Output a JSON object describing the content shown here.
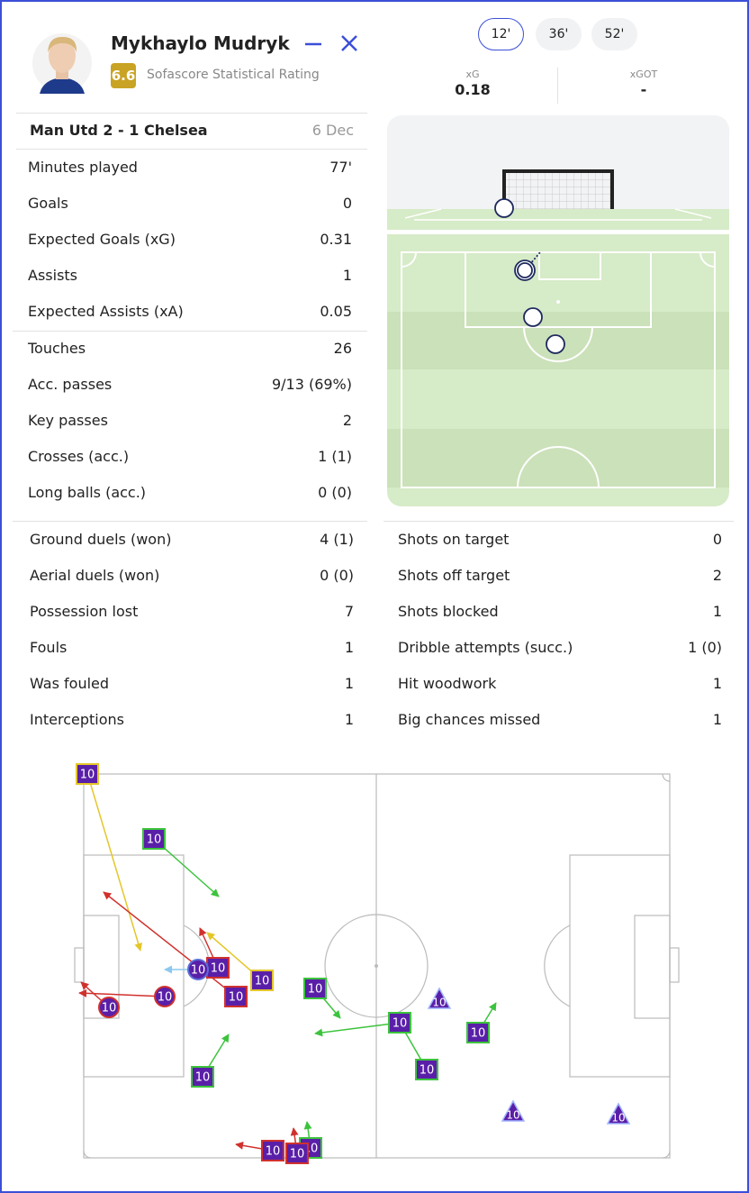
{
  "player": {
    "name": "Mykhaylo Mudryk",
    "rating": "6.6",
    "rating_label": "Sofascore Statistical Rating"
  },
  "match": {
    "title": "Man Utd 2 - 1 Chelsea",
    "date": "6 Dec"
  },
  "shot_tabs": [
    "12'",
    "36'",
    "52'"
  ],
  "shot_stats": [
    {
      "label": "xG",
      "value": "0.18"
    },
    {
      "label": "xGOT",
      "value": "-"
    }
  ],
  "stats_main": [
    {
      "label": "Minutes played",
      "value": "77'"
    },
    {
      "label": "Goals",
      "value": "0"
    },
    {
      "label": "Expected Goals (xG)",
      "value": "0.31"
    },
    {
      "label": "Assists",
      "value": "1"
    },
    {
      "label": "Expected Assists (xA)",
      "value": "0.05"
    }
  ],
  "stats_passing": [
    {
      "label": "Touches",
      "value": "26"
    },
    {
      "label": "Acc. passes",
      "value": "9/13 (69%)"
    },
    {
      "label": "Key passes",
      "value": "2"
    },
    {
      "label": "Crosses (acc.)",
      "value": "1 (1)"
    },
    {
      "label": "Long balls (acc.)",
      "value": "0 (0)"
    }
  ],
  "stats_defence": [
    {
      "label": "Ground duels (won)",
      "value": "4 (1)"
    },
    {
      "label": "Aerial duels (won)",
      "value": "0 (0)"
    },
    {
      "label": "Possession lost",
      "value": "7"
    },
    {
      "label": "Fouls",
      "value": "1"
    },
    {
      "label": "Was fouled",
      "value": "1"
    },
    {
      "label": "Interceptions",
      "value": "1"
    }
  ],
  "stats_attack": [
    {
      "label": "Shots on target",
      "value": "0"
    },
    {
      "label": "Shots off target",
      "value": "2"
    },
    {
      "label": "Shots blocked",
      "value": "1"
    },
    {
      "label": "Dribble attempts (succ.)",
      "value": "1 (0)"
    },
    {
      "label": "Hit woodwork",
      "value": "1"
    },
    {
      "label": "Big chances missed",
      "value": "1"
    }
  ],
  "action_map": {
    "marker_label": "10"
  }
}
